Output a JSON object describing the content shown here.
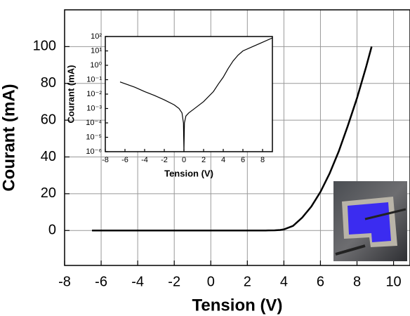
{
  "chart_data": [
    {
      "type": "line",
      "xlabel": "Tension (V)",
      "ylabel": "Courant (mA)",
      "xlim": [
        -8,
        10.9
      ],
      "ylim": [
        -19,
        120
      ],
      "xticks": [
        -8,
        -6,
        -4,
        -2,
        0,
        2,
        4,
        6,
        8,
        10
      ],
      "yticks": [
        0,
        20,
        40,
        60,
        80,
        100
      ],
      "grid": true,
      "series": [
        {
          "color": "#000000",
          "x": [
            -6.5,
            -4,
            -2,
            0,
            2,
            3,
            3.5,
            3.8,
            4,
            4.5,
            5,
            5.5,
            6,
            6.5,
            7,
            7.5,
            8,
            8.5,
            8.8
          ],
          "values": [
            0,
            0,
            0,
            0,
            0,
            0,
            0.1,
            0.3,
            0.6,
            2.5,
            7,
            13,
            21,
            31,
            43,
            57,
            72,
            89,
            100
          ]
        }
      ]
    },
    {
      "type": "line",
      "xlabel": "Tension (V)",
      "ylabel": "Courant (mA)",
      "ylog": true,
      "xlim": [
        -8,
        9
      ],
      "ylim": [
        1e-06,
        100
      ],
      "xticks": [
        -8,
        -6,
        -4,
        -2,
        0,
        2,
        4,
        6,
        8
      ],
      "yticks": [
        {
          "value": 1e-06,
          "label": "10⁻⁶"
        },
        {
          "value": 1e-05,
          "label": "10⁻⁵"
        },
        {
          "value": 0.0001,
          "label": "10⁻⁴"
        },
        {
          "value": 0.001,
          "label": "10⁻³"
        },
        {
          "value": 0.01,
          "label": "10⁻²"
        },
        {
          "value": 0.1,
          "label": "10⁻¹"
        },
        {
          "value": 1,
          "label": "10⁰"
        },
        {
          "value": 10,
          "label": "10¹"
        },
        {
          "value": 100,
          "label": "10²"
        }
      ],
      "grid": false,
      "series": [
        {
          "color": "#000000",
          "x": [
            -6.5,
            -5,
            -4,
            -3,
            -2,
            -1,
            -0.5,
            -0.2,
            -0.05,
            0,
            0.05,
            0.2,
            0.5,
            1,
            2,
            3,
            3.5,
            4,
            4.5,
            5,
            5.5,
            6,
            7,
            8,
            9
          ],
          "values": [
            0.07,
            0.03,
            0.015,
            0.008,
            0.004,
            0.0018,
            0.001,
            0.0005,
            0.0001,
            1e-06,
            0.0001,
            0.0003,
            0.0005,
            0.0009,
            0.003,
            0.015,
            0.05,
            0.15,
            0.6,
            2,
            5,
            10,
            20,
            40,
            80
          ]
        }
      ]
    }
  ]
}
